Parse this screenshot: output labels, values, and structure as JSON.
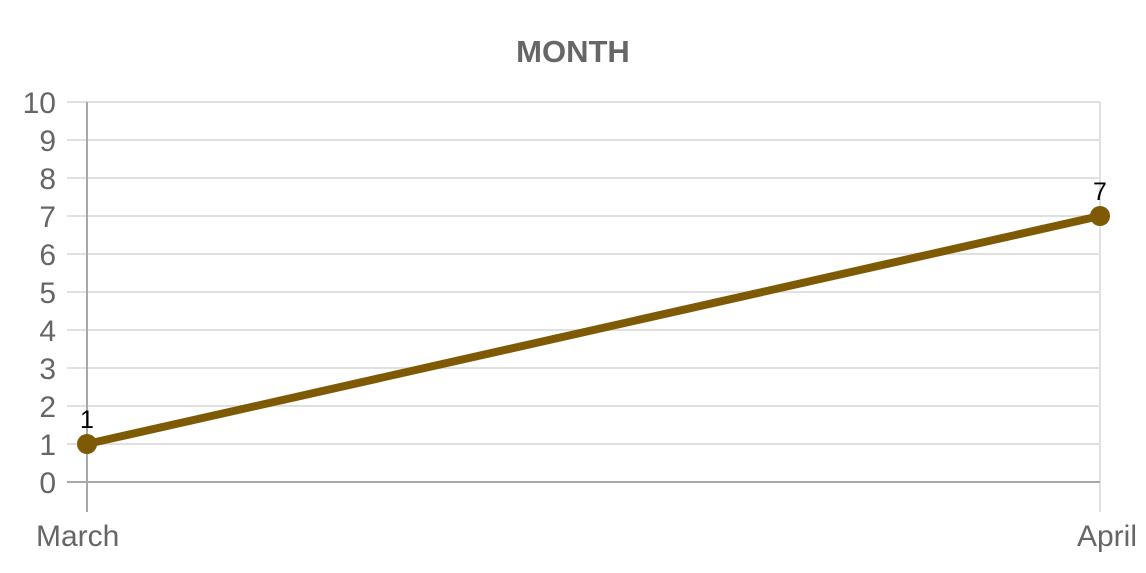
{
  "chart_data": {
    "type": "line",
    "title": "MONTH",
    "xlabel": "",
    "ylabel": "",
    "categories": [
      "March",
      "April"
    ],
    "series": [
      {
        "values": [
          1,
          7
        ],
        "color": "#7f5a05"
      }
    ],
    "data_labels": [
      "1",
      "7"
    ],
    "ylim": [
      0,
      10
    ],
    "yticks": [
      "0",
      "1",
      "2",
      "3",
      "4",
      "5",
      "6",
      "7",
      "8",
      "9",
      "10"
    ],
    "grid": true,
    "legend": "none",
    "colors": {
      "grid": "#e0e0e0",
      "axis": "#a8a8a8",
      "text": "#666666"
    }
  }
}
